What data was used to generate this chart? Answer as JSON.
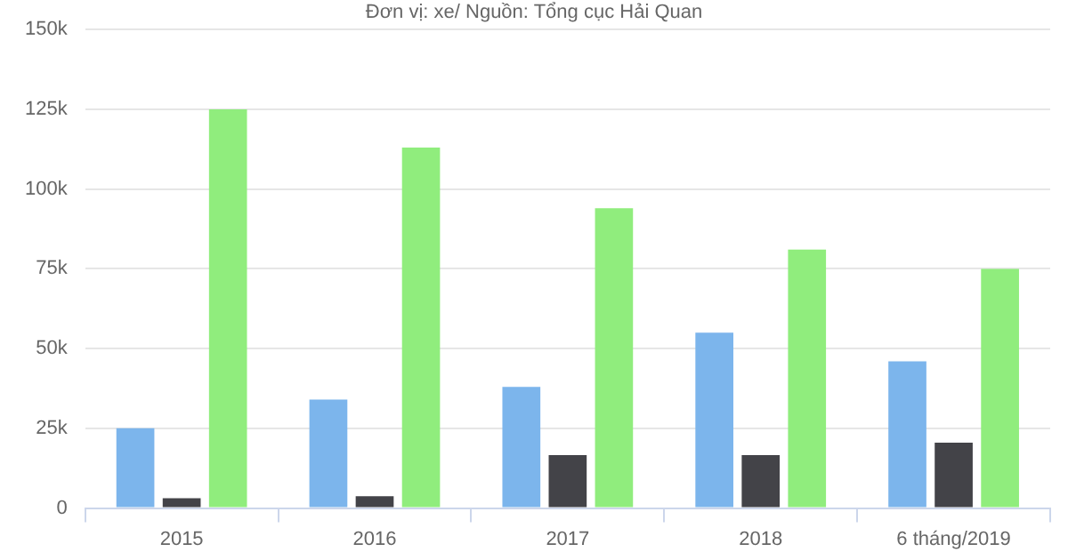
{
  "chart_data": {
    "type": "bar",
    "subtitle": "Đơn vị: xe/ Nguồn: Tổng cục Hải Quan",
    "categories": [
      "2015",
      "2016",
      "2017",
      "2018",
      "6 tháng/2019"
    ],
    "series": [
      {
        "color": "#7cb5ec",
        "values": [
          25000,
          34000,
          38000,
          55000,
          46000
        ]
      },
      {
        "color": "#434348",
        "values": [
          3100,
          3700,
          16600,
          16600,
          20500
        ]
      },
      {
        "color": "#90ed7d",
        "values": [
          125000,
          113000,
          94000,
          81000,
          75000
        ]
      }
    ],
    "ylim": [
      0,
      150000
    ],
    "yticks": [
      {
        "value": 0,
        "label": "0"
      },
      {
        "value": 25000,
        "label": "25k"
      },
      {
        "value": 50000,
        "label": "50k"
      },
      {
        "value": 75000,
        "label": "75k"
      },
      {
        "value": 100000,
        "label": "100k"
      },
      {
        "value": 125000,
        "label": "125k"
      },
      {
        "value": 150000,
        "label": "150k"
      }
    ],
    "grid": "y"
  }
}
